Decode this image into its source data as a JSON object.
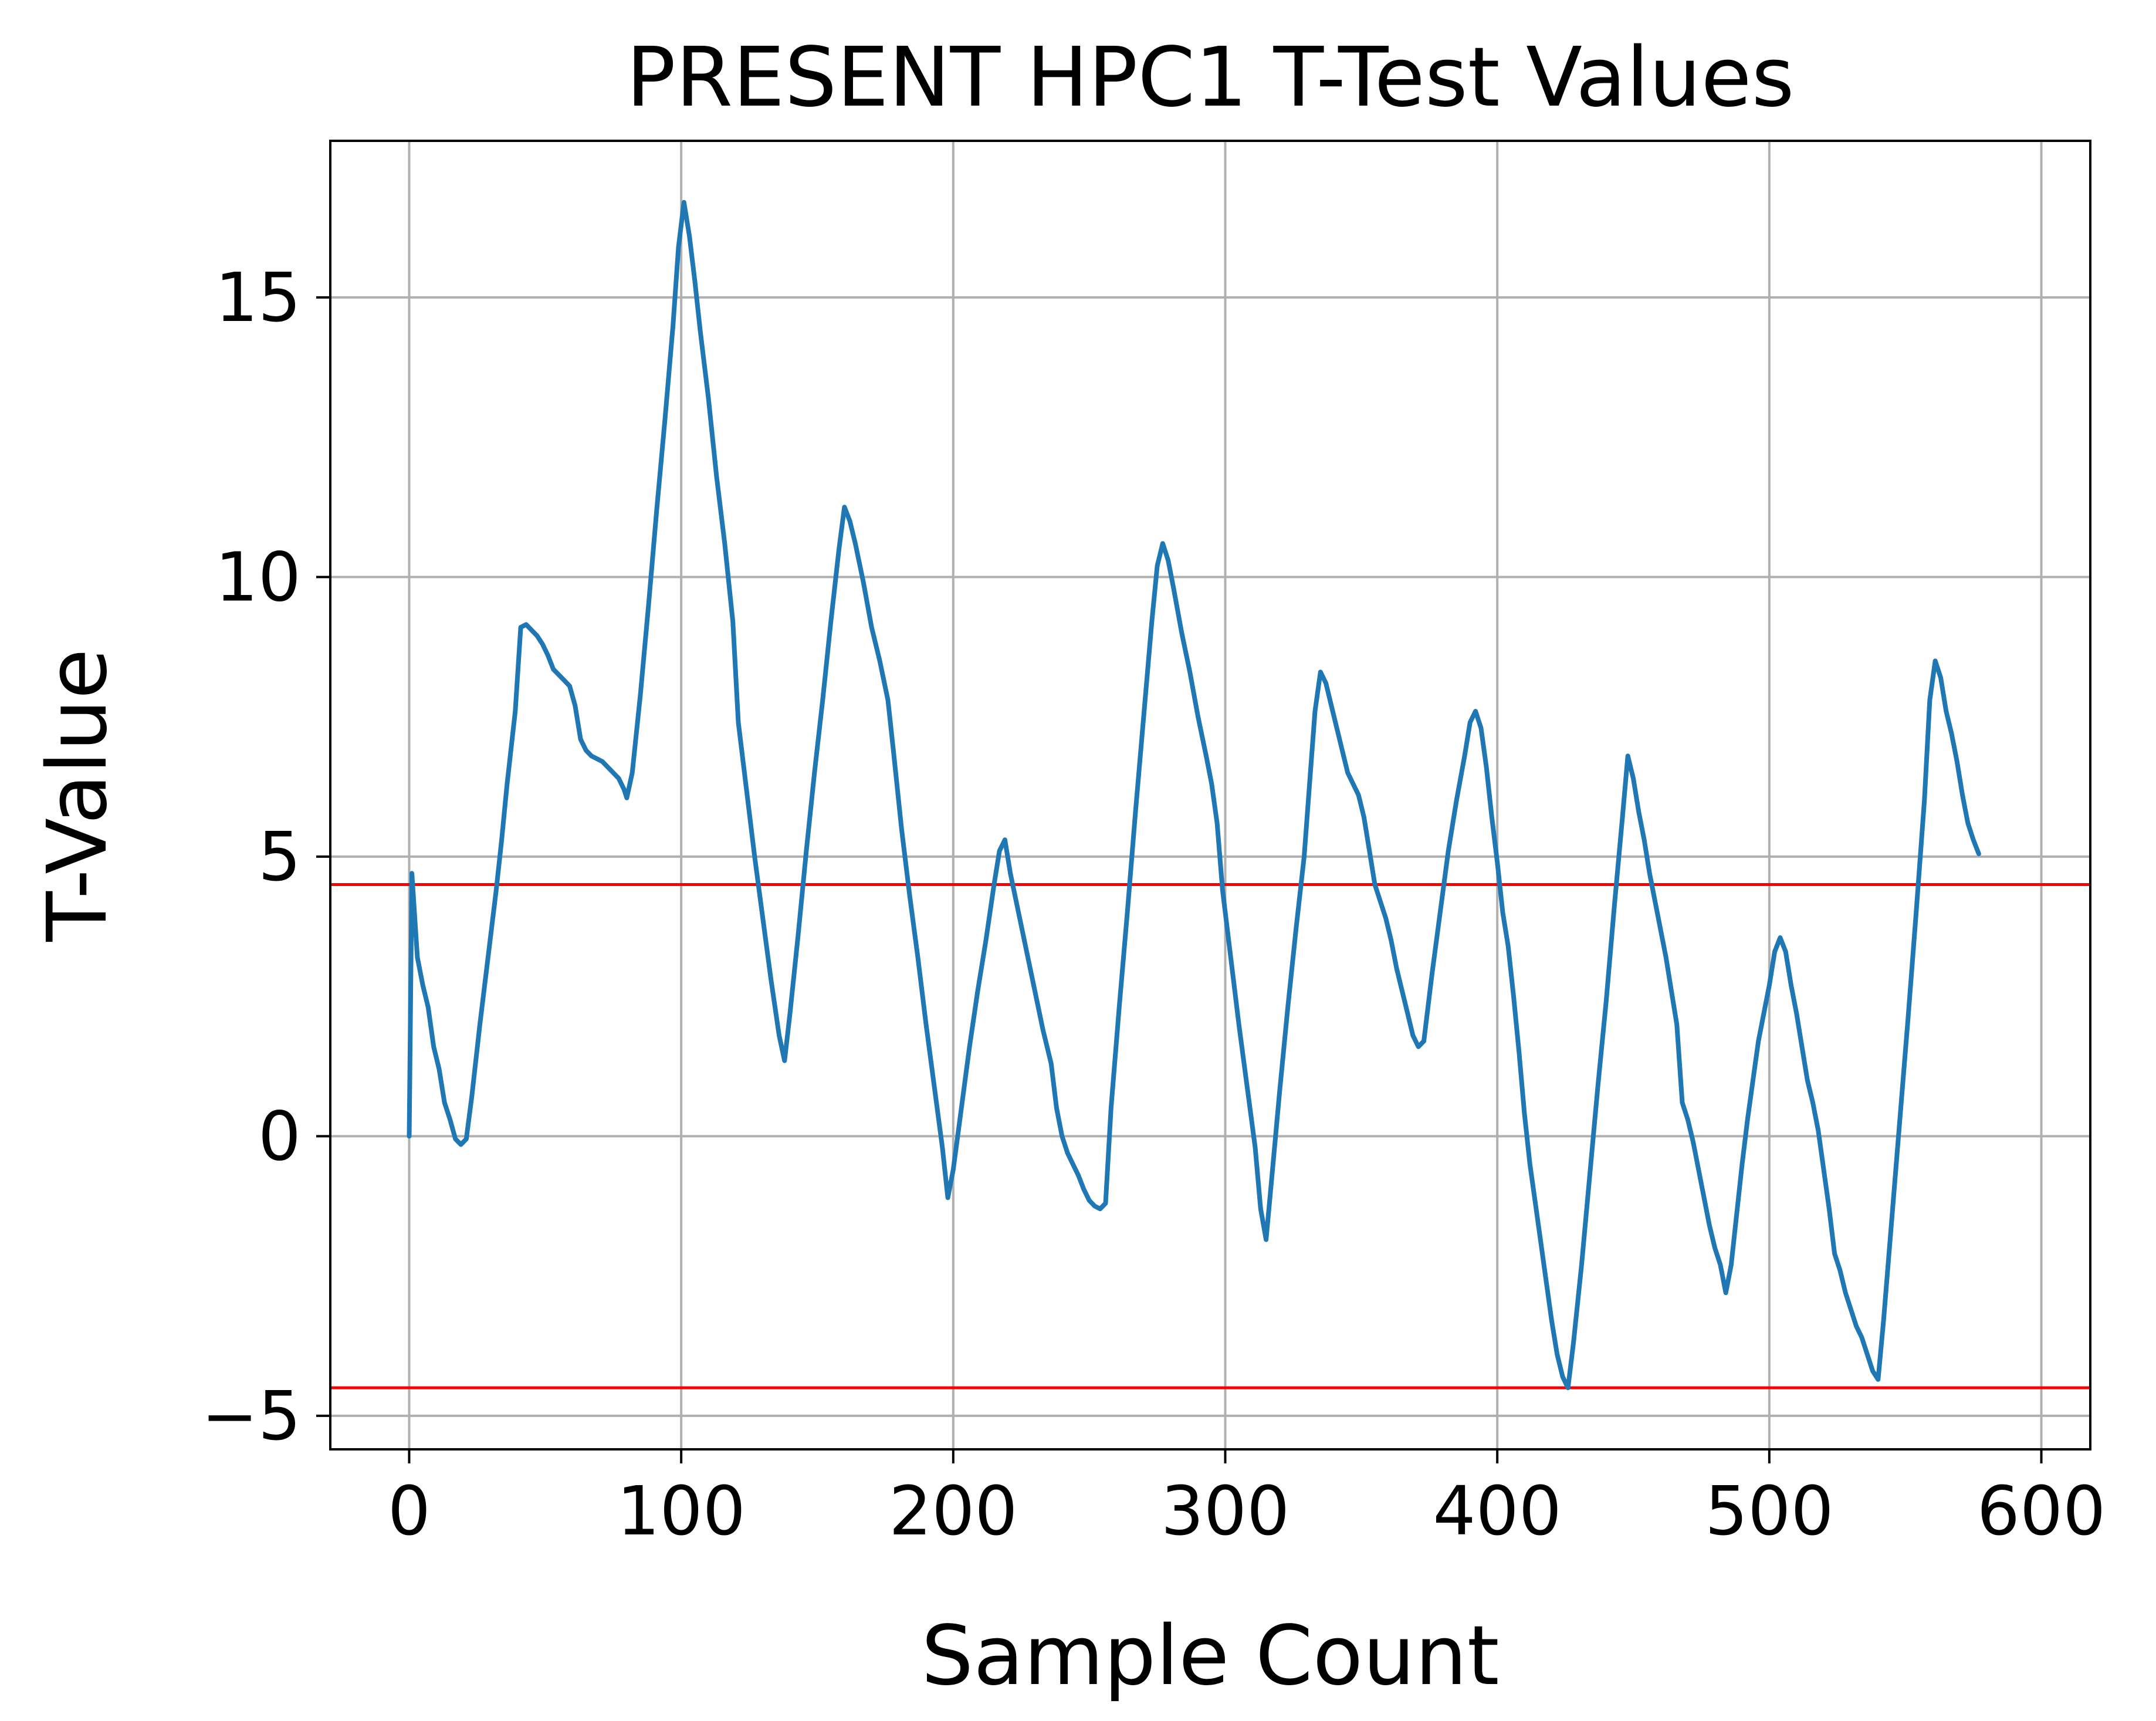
{
  "chart_data": {
    "type": "line",
    "title": "PRESENT HPC1 T-Test Values",
    "xlabel": "Sample Count",
    "ylabel": "T-Value",
    "xlim": [
      -29,
      618
    ],
    "ylim": [
      -5.6,
      17.8
    ],
    "xticks": [
      0,
      100,
      200,
      300,
      400,
      500,
      600
    ],
    "xtick_labels": [
      "0",
      "100",
      "200",
      "300",
      "400",
      "500",
      "600"
    ],
    "yticks": [
      -5,
      0,
      5,
      10,
      15
    ],
    "ytick_labels": [
      "−5",
      "0",
      "5",
      "10",
      "15"
    ],
    "grid": true,
    "line_color": "#1f77b4",
    "threshold_color": "#ff0000",
    "thresholds": [
      4.5,
      -4.5
    ],
    "series": [
      {
        "points": [
          [
            0,
            0.0
          ],
          [
            1,
            4.7
          ],
          [
            3,
            3.2
          ],
          [
            5,
            2.7
          ],
          [
            7,
            2.3
          ],
          [
            9,
            1.6
          ],
          [
            11,
            1.2
          ],
          [
            13,
            0.6
          ],
          [
            15,
            0.3
          ],
          [
            17,
            -0.05
          ],
          [
            19,
            -0.15
          ],
          [
            21,
            -0.05
          ],
          [
            23,
            0.7
          ],
          [
            26,
            2.0
          ],
          [
            29,
            3.2
          ],
          [
            32,
            4.4
          ],
          [
            34,
            5.3
          ],
          [
            36,
            6.3
          ],
          [
            39,
            7.6
          ],
          [
            41,
            9.1
          ],
          [
            43,
            9.15
          ],
          [
            45,
            9.05
          ],
          [
            47,
            8.95
          ],
          [
            49,
            8.8
          ],
          [
            51,
            8.6
          ],
          [
            53,
            8.35
          ],
          [
            55,
            8.25
          ],
          [
            57,
            8.15
          ],
          [
            59,
            8.05
          ],
          [
            61,
            7.7
          ],
          [
            63,
            7.1
          ],
          [
            65,
            6.9
          ],
          [
            67,
            6.8
          ],
          [
            69,
            6.75
          ],
          [
            71,
            6.7
          ],
          [
            73,
            6.6
          ],
          [
            75,
            6.5
          ],
          [
            77,
            6.4
          ],
          [
            79,
            6.2
          ],
          [
            80,
            6.05
          ],
          [
            82,
            6.5
          ],
          [
            85,
            7.9
          ],
          [
            88,
            9.5
          ],
          [
            91,
            11.2
          ],
          [
            94,
            12.8
          ],
          [
            97,
            14.5
          ],
          [
            99,
            15.9
          ],
          [
            101,
            16.7
          ],
          [
            103,
            16.1
          ],
          [
            105,
            15.3
          ],
          [
            107,
            14.4
          ],
          [
            110,
            13.2
          ],
          [
            113,
            11.8
          ],
          [
            116,
            10.6
          ],
          [
            119,
            9.2
          ],
          [
            121,
            7.4
          ],
          [
            124,
            6.2
          ],
          [
            127,
            5.0
          ],
          [
            130,
            3.9
          ],
          [
            133,
            2.8
          ],
          [
            136,
            1.8
          ],
          [
            138,
            1.35
          ],
          [
            140,
            2.2
          ],
          [
            143,
            3.6
          ],
          [
            146,
            5.1
          ],
          [
            149,
            6.5
          ],
          [
            152,
            7.8
          ],
          [
            155,
            9.2
          ],
          [
            158,
            10.5
          ],
          [
            160,
            11.25
          ],
          [
            162,
            11.0
          ],
          [
            164,
            10.6
          ],
          [
            167,
            9.9
          ],
          [
            170,
            9.1
          ],
          [
            173,
            8.5
          ],
          [
            176,
            7.8
          ],
          [
            178,
            6.9
          ],
          [
            181,
            5.5
          ],
          [
            184,
            4.3
          ],
          [
            187,
            3.2
          ],
          [
            190,
            2.0
          ],
          [
            193,
            0.9
          ],
          [
            196,
            -0.2
          ],
          [
            198,
            -1.1
          ],
          [
            200,
            -0.6
          ],
          [
            203,
            0.5
          ],
          [
            206,
            1.6
          ],
          [
            209,
            2.6
          ],
          [
            212,
            3.5
          ],
          [
            215,
            4.5
          ],
          [
            217,
            5.1
          ],
          [
            219,
            5.3
          ],
          [
            221,
            4.7
          ],
          [
            224,
            4.0
          ],
          [
            227,
            3.3
          ],
          [
            230,
            2.6
          ],
          [
            233,
            1.9
          ],
          [
            236,
            1.3
          ],
          [
            238,
            0.5
          ],
          [
            240,
            0.0
          ],
          [
            242,
            -0.3
          ],
          [
            244,
            -0.5
          ],
          [
            246,
            -0.7
          ],
          [
            248,
            -0.95
          ],
          [
            250,
            -1.15
          ],
          [
            252,
            -1.25
          ],
          [
            254,
            -1.3
          ],
          [
            256,
            -1.2
          ],
          [
            258,
            0.5
          ],
          [
            261,
            2.3
          ],
          [
            264,
            4.0
          ],
          [
            267,
            5.8
          ],
          [
            270,
            7.5
          ],
          [
            273,
            9.2
          ],
          [
            275,
            10.2
          ],
          [
            277,
            10.6
          ],
          [
            279,
            10.3
          ],
          [
            281,
            9.8
          ],
          [
            284,
            9.0
          ],
          [
            287,
            8.3
          ],
          [
            290,
            7.5
          ],
          [
            293,
            6.8
          ],
          [
            295,
            6.3
          ],
          [
            297,
            5.6
          ],
          [
            299,
            4.4
          ],
          [
            302,
            3.2
          ],
          [
            305,
            2.0
          ],
          [
            308,
            0.9
          ],
          [
            311,
            -0.2
          ],
          [
            313,
            -1.3
          ],
          [
            315,
            -1.85
          ],
          [
            317,
            -0.8
          ],
          [
            320,
            0.8
          ],
          [
            323,
            2.3
          ],
          [
            326,
            3.7
          ],
          [
            329,
            5.0
          ],
          [
            331,
            6.3
          ],
          [
            333,
            7.6
          ],
          [
            335,
            8.3
          ],
          [
            337,
            8.1
          ],
          [
            339,
            7.7
          ],
          [
            341,
            7.3
          ],
          [
            343,
            6.9
          ],
          [
            345,
            6.5
          ],
          [
            347,
            6.3
          ],
          [
            349,
            6.1
          ],
          [
            351,
            5.7
          ],
          [
            353,
            5.1
          ],
          [
            355,
            4.5
          ],
          [
            357,
            4.2
          ],
          [
            359,
            3.9
          ],
          [
            361,
            3.5
          ],
          [
            363,
            3.0
          ],
          [
            365,
            2.6
          ],
          [
            367,
            2.2
          ],
          [
            369,
            1.8
          ],
          [
            371,
            1.6
          ],
          [
            373,
            1.7
          ],
          [
            376,
            2.9
          ],
          [
            379,
            4.0
          ],
          [
            382,
            5.1
          ],
          [
            385,
            6.0
          ],
          [
            388,
            6.8
          ],
          [
            390,
            7.4
          ],
          [
            392,
            7.6
          ],
          [
            394,
            7.3
          ],
          [
            396,
            6.6
          ],
          [
            398,
            5.7
          ],
          [
            400,
            4.9
          ],
          [
            402,
            4.0
          ],
          [
            404,
            3.4
          ],
          [
            406,
            2.5
          ],
          [
            408,
            1.5
          ],
          [
            410,
            0.4
          ],
          [
            412,
            -0.5
          ],
          [
            414,
            -1.2
          ],
          [
            416,
            -1.9
          ],
          [
            418,
            -2.6
          ],
          [
            420,
            -3.3
          ],
          [
            422,
            -3.9
          ],
          [
            424,
            -4.3
          ],
          [
            426,
            -4.5
          ],
          [
            428,
            -3.7
          ],
          [
            431,
            -2.3
          ],
          [
            434,
            -0.7
          ],
          [
            437,
            0.9
          ],
          [
            440,
            2.4
          ],
          [
            443,
            4.1
          ],
          [
            446,
            5.7
          ],
          [
            448,
            6.8
          ],
          [
            450,
            6.4
          ],
          [
            452,
            5.8
          ],
          [
            454,
            5.3
          ],
          [
            456,
            4.7
          ],
          [
            458,
            4.2
          ],
          [
            460,
            3.7
          ],
          [
            462,
            3.2
          ],
          [
            464,
            2.6
          ],
          [
            466,
            2.0
          ],
          [
            468,
            0.6
          ],
          [
            470,
            0.3
          ],
          [
            472,
            -0.1
          ],
          [
            474,
            -0.6
          ],
          [
            476,
            -1.1
          ],
          [
            478,
            -1.6
          ],
          [
            480,
            -2.0
          ],
          [
            482,
            -2.3
          ],
          [
            484,
            -2.8
          ],
          [
            486,
            -2.3
          ],
          [
            488,
            -1.4
          ],
          [
            490,
            -0.5
          ],
          [
            492,
            0.3
          ],
          [
            494,
            1.0
          ],
          [
            496,
            1.7
          ],
          [
            498,
            2.2
          ],
          [
            500,
            2.7
          ],
          [
            502,
            3.3
          ],
          [
            504,
            3.55
          ],
          [
            506,
            3.3
          ],
          [
            508,
            2.7
          ],
          [
            510,
            2.2
          ],
          [
            512,
            1.6
          ],
          [
            514,
            1.0
          ],
          [
            516,
            0.6
          ],
          [
            518,
            0.1
          ],
          [
            520,
            -0.6
          ],
          [
            522,
            -1.3
          ],
          [
            524,
            -2.1
          ],
          [
            526,
            -2.4
          ],
          [
            528,
            -2.8
          ],
          [
            530,
            -3.1
          ],
          [
            532,
            -3.4
          ],
          [
            534,
            -3.6
          ],
          [
            536,
            -3.9
          ],
          [
            538,
            -4.2
          ],
          [
            540,
            -4.35
          ],
          [
            542,
            -3.3
          ],
          [
            545,
            -1.5
          ],
          [
            548,
            0.3
          ],
          [
            551,
            2.1
          ],
          [
            554,
            4.0
          ],
          [
            557,
            6.0
          ],
          [
            559,
            7.8
          ],
          [
            561,
            8.5
          ],
          [
            563,
            8.2
          ],
          [
            565,
            7.6
          ],
          [
            567,
            7.2
          ],
          [
            569,
            6.7
          ],
          [
            571,
            6.1
          ],
          [
            573,
            5.6
          ],
          [
            575,
            5.3
          ],
          [
            577,
            5.05
          ]
        ]
      }
    ]
  }
}
